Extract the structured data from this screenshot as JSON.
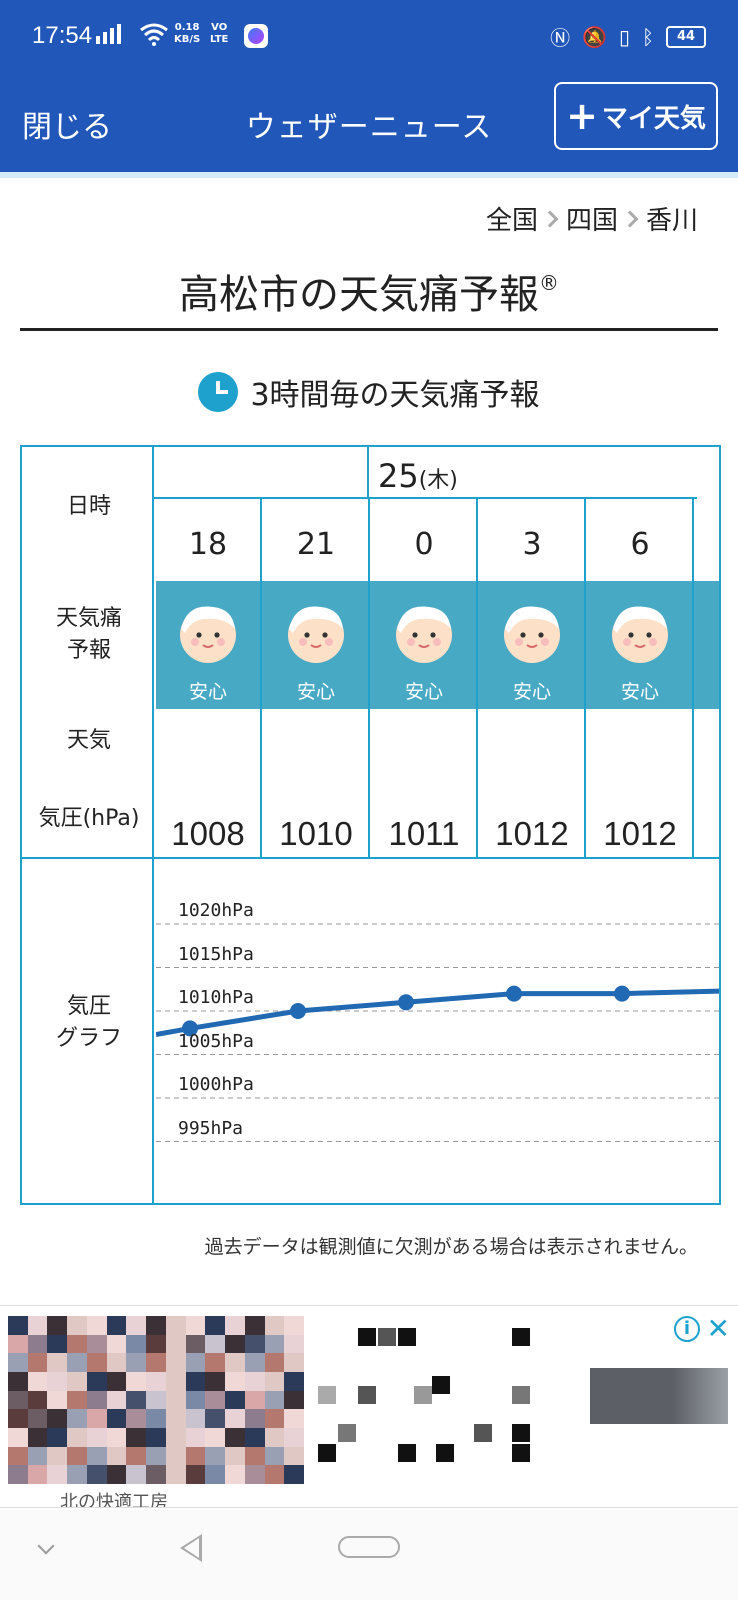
{
  "status_bar": {
    "time": "17:54",
    "net_speed_value": "0.18",
    "net_speed_unit": "KB/S",
    "volte_top": "VO",
    "volte_bottom": "LTE",
    "battery": "44"
  },
  "nav": {
    "close_label": "閉じる",
    "title": "ウェザーニュース",
    "my_weather_label": "マイ天気"
  },
  "breadcrumb": [
    "全国",
    "四国",
    "香川"
  ],
  "page_title": "高松市の天気痛予報",
  "page_title_mark": "®",
  "section_title": "3時間毎の天気痛予報",
  "table": {
    "row_labels": {
      "datetime": "日時",
      "forecast_line1": "天気痛",
      "forecast_line2": "予報",
      "weather": "天気",
      "pressure": "気圧(hPa)",
      "graph_line1": "気圧",
      "graph_line2": "グラフ"
    },
    "date_day": "25",
    "date_weekday": "(木)",
    "columns": [
      {
        "hour": "18",
        "status": "安心",
        "pressure": "1008"
      },
      {
        "hour": "21",
        "status": "安心",
        "pressure": "1010"
      },
      {
        "hour": "0",
        "status": "安心",
        "pressure": "1011"
      },
      {
        "hour": "3",
        "status": "安心",
        "pressure": "1012"
      },
      {
        "hour": "6",
        "status": "安心",
        "pressure": "1012"
      }
    ]
  },
  "pressure_graph": {
    "gridlines": [
      "1020hPa",
      "1015hPa",
      "1010hPa",
      "1005hPa",
      "1000hPa",
      "995hPa"
    ],
    "values": [
      1008,
      1010,
      1011,
      1012,
      1012
    ],
    "line_color": "#2169b3"
  },
  "note": "過去データは観測値に欠測がある場合は表示されません。",
  "ad": {
    "caption": "北の快適工房"
  },
  "colors": {
    "brand_blue": "#2157b9",
    "accent_teal": "#1ea2cd",
    "forecast_band": "#47a9c4"
  }
}
